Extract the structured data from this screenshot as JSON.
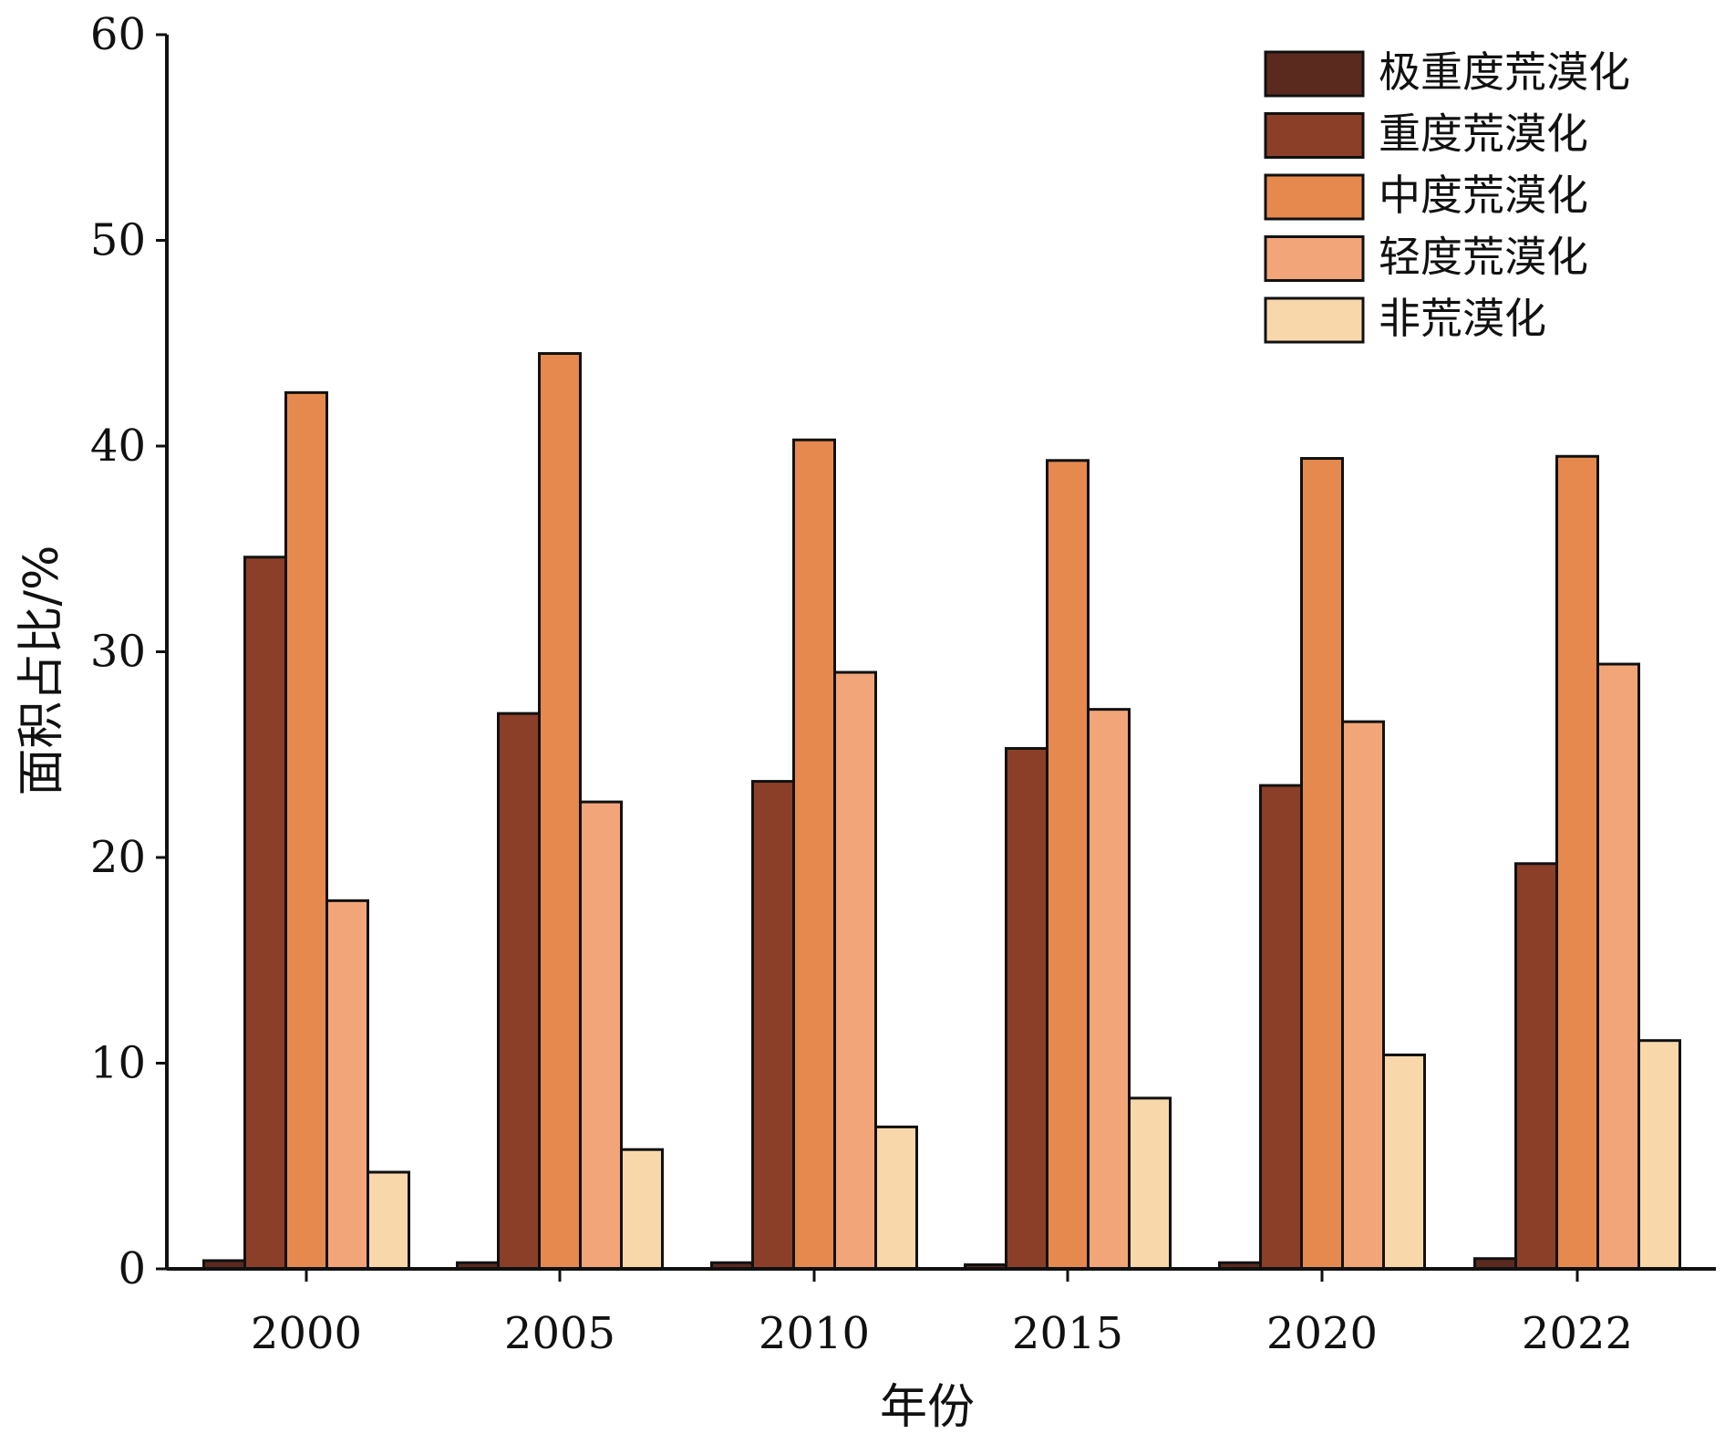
{
  "chart_data": {
    "type": "bar",
    "title": "",
    "xlabel": "年份",
    "ylabel": "面积占比/%",
    "categories": [
      "2000",
      "2005",
      "2010",
      "2015",
      "2020",
      "2022"
    ],
    "ylim": [
      0,
      60
    ],
    "yticks": [
      "0",
      "10",
      "20",
      "30",
      "40",
      "50",
      "60"
    ],
    "grid": false,
    "legend_position": "top-right",
    "series": [
      {
        "name": "极重度荒漠化",
        "color": "#5a2a1f",
        "values": [
          0.4,
          0.3,
          0.3,
          0.2,
          0.3,
          0.5
        ]
      },
      {
        "name": "重度荒漠化",
        "color": "#8b3f28",
        "values": [
          34.6,
          27.0,
          23.7,
          25.3,
          23.5,
          19.7
        ]
      },
      {
        "name": "中度荒漠化",
        "color": "#e6894e",
        "values": [
          42.6,
          44.5,
          40.3,
          39.3,
          39.4,
          39.5
        ]
      },
      {
        "name": "轻度荒漠化",
        "color": "#f3a57a",
        "values": [
          17.9,
          22.7,
          29.0,
          27.2,
          26.6,
          29.4
        ]
      },
      {
        "name": "非荒漠化",
        "color": "#f8d8ab",
        "values": [
          4.7,
          5.8,
          6.9,
          8.3,
          10.4,
          11.1
        ]
      }
    ]
  }
}
